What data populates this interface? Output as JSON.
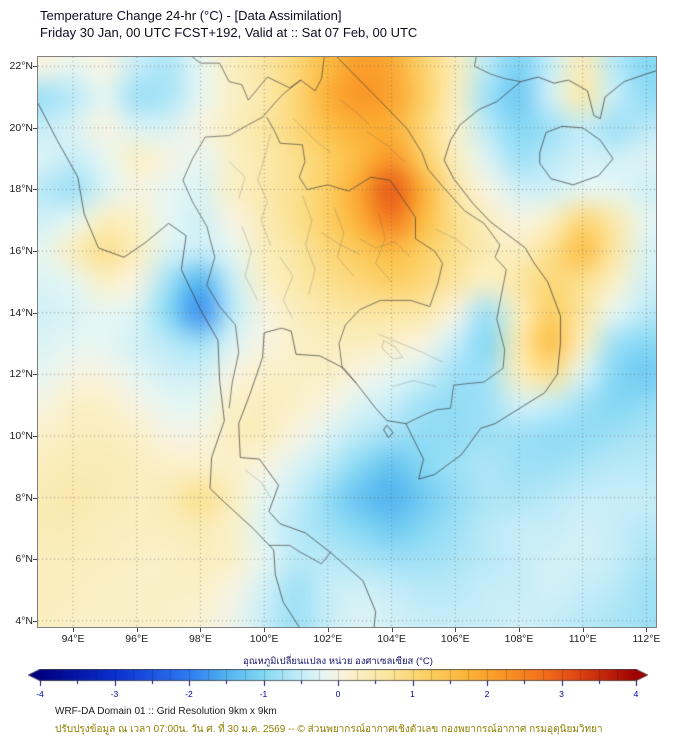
{
  "header": {
    "title": "Temperature Change 24-hr (°C) - [Data Assimilation]",
    "subtitle": "Friday 30 Jan, 00 UTC FCST+192, Valid at :: Sat 07 Feb, 00 UTC"
  },
  "chart_data": {
    "type": "heatmap",
    "title": "Temperature Change 24-hr (°C) - [Data Assimilation]",
    "subtitle": "Friday 30 Jan, 00 UTC FCST+192, Valid at :: Sat 07 Feb, 00 UTC",
    "value_units": "°C",
    "value_range": [
      -4,
      4
    ],
    "lon_range": [
      92.9,
      112.3
    ],
    "lat_range": [
      3.8,
      22.3
    ],
    "grid_on": true,
    "x_ticks": [
      {
        "v": 94,
        "label": "94°E"
      },
      {
        "v": 96,
        "label": "96°E"
      },
      {
        "v": 98,
        "label": "98°E"
      },
      {
        "v": 100,
        "label": "100°E"
      },
      {
        "v": 102,
        "label": "102°E"
      },
      {
        "v": 104,
        "label": "104°E"
      },
      {
        "v": 106,
        "label": "106°E"
      },
      {
        "v": 108,
        "label": "108°E"
      },
      {
        "v": 110,
        "label": "110°E"
      },
      {
        "v": 112,
        "label": "112°E"
      }
    ],
    "y_ticks": [
      {
        "v": 4,
        "label": "4°N"
      },
      {
        "v": 6,
        "label": "6°N"
      },
      {
        "v": 8,
        "label": "8°N"
      },
      {
        "v": 10,
        "label": "10°N"
      },
      {
        "v": 12,
        "label": "12°N"
      },
      {
        "v": 14,
        "label": "14°N"
      },
      {
        "v": 16,
        "label": "16°N"
      },
      {
        "v": 18,
        "label": "18°N"
      },
      {
        "v": 20,
        "label": "20°N"
      },
      {
        "v": 22,
        "label": "22°N"
      }
    ],
    "grid": {
      "lon_start": 93,
      "lon_step": 1,
      "lat_start": 23,
      "lat_step": -1,
      "values": [
        [
          0.2,
          0.1,
          0.0,
          -0.4,
          -0.6,
          -0.1,
          0.3,
          0.6,
          1.0,
          1.6,
          2.0,
          1.8,
          1.0,
          0.3,
          -0.6,
          -1.0,
          -0.4,
          0.3,
          -0.7,
          -1.0,
          -0.8
        ],
        [
          0.0,
          -0.2,
          0.0,
          -0.5,
          -0.7,
          -0.2,
          0.3,
          0.6,
          1.0,
          1.6,
          2.1,
          1.9,
          1.1,
          0.4,
          -0.6,
          -1.1,
          -0.5,
          0.4,
          -0.6,
          -1.0,
          -0.9
        ],
        [
          -0.8,
          -0.6,
          -0.2,
          -0.8,
          -0.7,
          -0.2,
          0.2,
          0.5,
          1.0,
          1.8,
          2.2,
          2.0,
          1.2,
          0.3,
          -0.8,
          -1.2,
          -0.4,
          0.5,
          -0.5,
          -0.9,
          -0.9
        ],
        [
          -0.5,
          -0.3,
          0.0,
          -0.3,
          -0.3,
          0.0,
          0.3,
          0.6,
          1.0,
          1.5,
          1.8,
          1.8,
          1.0,
          0.2,
          -0.6,
          -1.0,
          -0.8,
          -0.5,
          -0.8,
          -0.6,
          -0.5
        ],
        [
          -0.3,
          -0.5,
          -0.2,
          0.2,
          0.0,
          -0.2,
          0.2,
          0.5,
          0.8,
          1.2,
          1.6,
          2.2,
          1.2,
          0.3,
          -0.3,
          -0.8,
          -0.6,
          -0.4,
          -0.4,
          -0.3,
          -0.3
        ],
        [
          -0.6,
          -0.8,
          -0.3,
          0.0,
          -0.2,
          -0.3,
          0.2,
          0.5,
          0.8,
          1.2,
          2.0,
          3.0,
          1.8,
          0.6,
          0.0,
          -0.4,
          -0.4,
          -0.2,
          -0.2,
          -0.4,
          -0.4
        ],
        [
          -0.4,
          -0.2,
          0.3,
          0.2,
          -0.2,
          -0.4,
          0.0,
          0.4,
          0.8,
          1.2,
          1.8,
          2.6,
          1.6,
          0.8,
          0.3,
          0.0,
          0.2,
          1.0,
          0.5,
          -0.2,
          -0.3
        ],
        [
          -0.2,
          0.3,
          0.8,
          0.3,
          -0.3,
          -0.5,
          -0.2,
          0.3,
          0.6,
          1.0,
          1.3,
          1.6,
          1.2,
          0.8,
          0.4,
          0.3,
          0.8,
          1.5,
          0.6,
          -0.3,
          -0.4
        ],
        [
          -0.3,
          -0.2,
          0.2,
          0.0,
          -0.8,
          -1.5,
          -0.5,
          0.2,
          0.5,
          0.8,
          1.0,
          1.2,
          1.0,
          0.6,
          0.2,
          0.6,
          1.0,
          0.8,
          0.2,
          -0.4,
          -0.5
        ],
        [
          -0.4,
          -0.3,
          -0.2,
          -0.3,
          -1.0,
          -1.8,
          -0.6,
          0.0,
          0.3,
          0.5,
          0.6,
          0.6,
          0.5,
          0.0,
          -0.8,
          0.3,
          1.2,
          0.6,
          -0.2,
          -0.6,
          -0.6
        ],
        [
          -0.3,
          -0.2,
          -0.2,
          -0.4,
          -0.6,
          -0.8,
          -0.3,
          0.0,
          0.2,
          0.3,
          0.3,
          0.2,
          0.0,
          -0.5,
          -1.0,
          0.5,
          1.5,
          0.3,
          -0.8,
          -1.0,
          -0.9
        ],
        [
          -0.2,
          0.0,
          0.0,
          -0.2,
          -0.4,
          -0.4,
          0.0,
          0.2,
          0.2,
          0.2,
          0.0,
          -0.2,
          -0.4,
          -0.8,
          -0.8,
          0.3,
          0.8,
          -0.3,
          -1.0,
          -1.2,
          -1.0
        ],
        [
          0.0,
          0.2,
          0.2,
          0.0,
          -0.2,
          -0.2,
          0.2,
          0.3,
          0.2,
          0.0,
          -0.3,
          -0.5,
          -0.8,
          -0.9,
          -0.8,
          -0.4,
          -0.5,
          -0.8,
          -1.0,
          -0.9,
          -0.8
        ],
        [
          0.2,
          0.3,
          0.3,
          0.2,
          0.0,
          0.0,
          0.3,
          0.3,
          0.0,
          -0.3,
          -0.6,
          -0.8,
          -0.9,
          -0.9,
          -0.8,
          -0.8,
          -0.9,
          -0.9,
          -0.8,
          -0.7,
          -0.7
        ],
        [
          0.3,
          0.4,
          0.4,
          0.3,
          0.2,
          0.2,
          0.2,
          0.0,
          -0.3,
          -0.6,
          -1.0,
          -1.3,
          -1.0,
          -0.8,
          -0.7,
          -0.8,
          -0.8,
          -0.7,
          -0.6,
          -0.6,
          -0.6
        ],
        [
          0.4,
          0.5,
          0.4,
          0.3,
          0.4,
          0.8,
          0.3,
          -0.2,
          -0.5,
          -0.9,
          -1.3,
          -1.5,
          -1.2,
          -0.9,
          -0.7,
          -0.7,
          -0.6,
          -0.5,
          -0.5,
          -0.5,
          -0.5
        ],
        [
          0.4,
          0.4,
          0.3,
          0.3,
          0.3,
          0.4,
          0.2,
          -0.3,
          -0.6,
          -0.8,
          -1.0,
          -1.2,
          -1.0,
          -0.8,
          -0.6,
          -0.5,
          -0.5,
          -0.4,
          -0.5,
          -0.6,
          -0.6
        ],
        [
          0.3,
          0.3,
          0.3,
          0.2,
          0.2,
          0.3,
          0.2,
          -0.2,
          -0.6,
          -0.6,
          -0.7,
          -0.8,
          -0.8,
          -0.7,
          -0.6,
          -0.5,
          -0.4,
          -0.4,
          -0.5,
          -0.7,
          -0.7
        ],
        [
          0.3,
          0.3,
          0.2,
          0.2,
          0.2,
          0.2,
          0.0,
          -0.4,
          -0.8,
          -0.5,
          -0.4,
          -0.5,
          -0.6,
          -0.6,
          -0.5,
          -0.5,
          -0.4,
          -0.5,
          -0.6,
          -0.8,
          -0.8
        ],
        [
          0.3,
          0.2,
          0.2,
          0.2,
          0.2,
          0.1,
          -0.1,
          -0.5,
          -0.8,
          -0.5,
          -0.3,
          -0.4,
          -0.5,
          -0.5,
          -0.5,
          -0.4,
          -0.5,
          -0.6,
          -0.7,
          -0.8,
          -0.8
        ],
        [
          0.3,
          0.2,
          0.2,
          0.2,
          0.2,
          0.1,
          -0.1,
          -0.5,
          -0.8,
          -0.5,
          -0.3,
          -0.4,
          -0.5,
          -0.5,
          -0.5,
          -0.4,
          -0.5,
          -0.6,
          -0.7,
          -0.8,
          -0.8
        ]
      ]
    }
  },
  "colorbar": {
    "label": "อุณหภูมิเปลี่ยนแปลง หน่วย องศาเซลเซียส (°C)",
    "min": -4,
    "max": 4,
    "ticks": [
      {
        "v": -4,
        "label": "-4"
      },
      {
        "v": -3,
        "label": "-3"
      },
      {
        "v": -2,
        "label": "-2"
      },
      {
        "v": -1,
        "label": "-1"
      },
      {
        "v": 0,
        "label": "0"
      },
      {
        "v": 1,
        "label": "1"
      },
      {
        "v": 2,
        "label": "2"
      },
      {
        "v": 3,
        "label": "3"
      },
      {
        "v": 4,
        "label": "4"
      }
    ],
    "stops": [
      [
        -4,
        "#000080"
      ],
      [
        -3,
        "#0a2fd0"
      ],
      [
        -2,
        "#2f7cf2"
      ],
      [
        -1.5,
        "#52b4ee"
      ],
      [
        -1,
        "#85d8f4"
      ],
      [
        -0.5,
        "#c6edf8"
      ],
      [
        -0.2,
        "#e6f6f2"
      ],
      [
        0,
        "#f7f3e2"
      ],
      [
        0.2,
        "#faf0c8"
      ],
      [
        0.7,
        "#fbe49a"
      ],
      [
        1.2,
        "#fccf63"
      ],
      [
        1.7,
        "#fcb63a"
      ],
      [
        2.2,
        "#f99627"
      ],
      [
        2.7,
        "#f4731d"
      ],
      [
        3.2,
        "#e04613"
      ],
      [
        4,
        "#9e0000"
      ]
    ]
  },
  "footer": {
    "line1": "WRF-DA Domain 01 :: Grid Resolution 9km x 9km",
    "line2": "ปรับปรุงข้อมูล ณ เวลา 07:00น. วัน ศ. ที่ 30 ม.ค. 2569 -- © ส่วนพยากรณ์อากาศเชิงตัวเลข กองพยากรณ์อากาศ กรมอุตุนิยมวิทยา"
  }
}
